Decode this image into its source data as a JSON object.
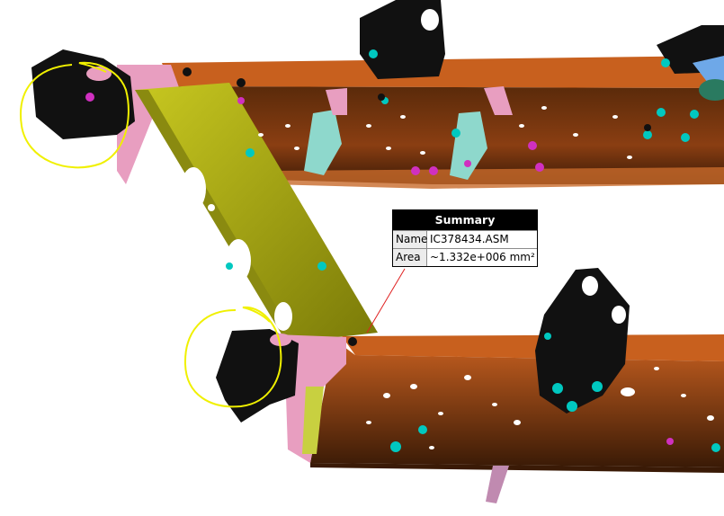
{
  "summary": {
    "title": "Summary",
    "rows": [
      {
        "key": "Name",
        "value": "IC378434.ASM"
      },
      {
        "key": "Area",
        "value": "~1.332e+006 mm²"
      }
    ]
  },
  "colors": {
    "rail_orange": "#b8561a",
    "rail_dark": "#4a2208",
    "crossmember": "#b8b818",
    "gusset_pink": "#e8a0c0",
    "bracket_cyan": "#7fd4c8",
    "bracket_black": "#111111",
    "fastener_cyan": "#00c8c0",
    "fastener_magenta": "#d030c0",
    "highlight_yellow": "#f0f000",
    "leader_red": "#e02020"
  }
}
